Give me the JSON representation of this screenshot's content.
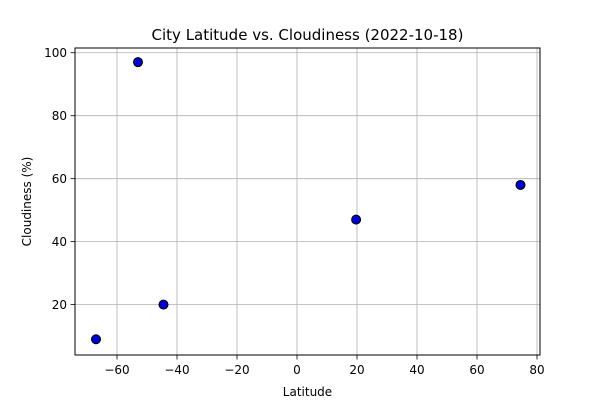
{
  "chart_data": {
    "type": "scatter",
    "title": "City Latitude vs. Cloudiness (2022-10-18)",
    "xlabel": "Latitude",
    "ylabel": "Cloudiness (%)",
    "xlim": [
      -74,
      81
    ],
    "ylim": [
      4,
      101.5
    ],
    "xticks": [
      -60,
      -40,
      -20,
      0,
      20,
      40,
      60,
      80
    ],
    "yticks": [
      20,
      40,
      60,
      80,
      100
    ],
    "xtick_labels": [
      "−60",
      "−40",
      "−20",
      "0",
      "20",
      "40",
      "60",
      "80"
    ],
    "ytick_labels": [
      "20",
      "40",
      "60",
      "80",
      "100"
    ],
    "grid": true,
    "points": [
      {
        "x": -67,
        "y": 9
      },
      {
        "x": -53,
        "y": 97
      },
      {
        "x": -44.5,
        "y": 20
      },
      {
        "x": 19.7,
        "y": 47
      },
      {
        "x": 74.5,
        "y": 58
      }
    ],
    "marker_fill": "#0000cc",
    "marker_edge": "#000000",
    "grid_color": "#b0b0b0"
  }
}
